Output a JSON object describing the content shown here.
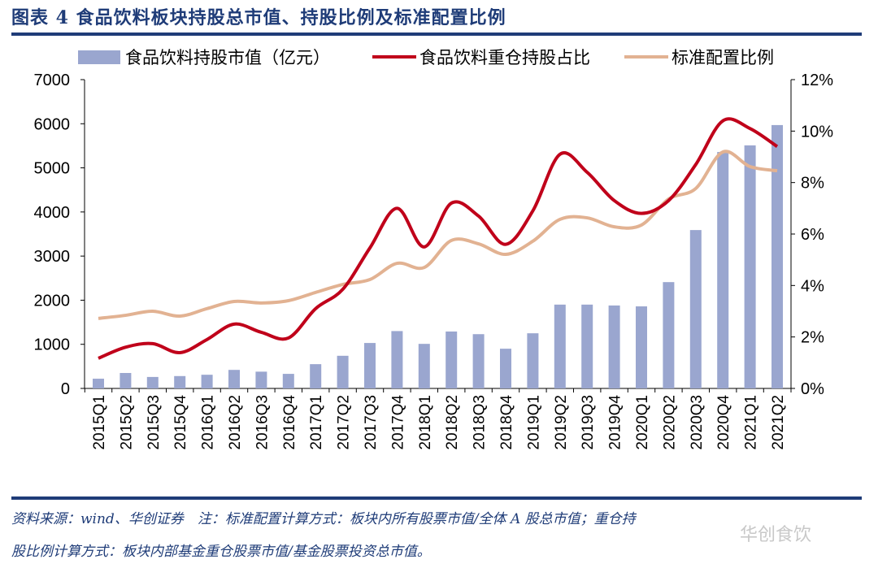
{
  "title": "图表 4   食品饮料板块持股总市值、持股比例及标准配置比例",
  "footer": {
    "line1": "资料来源：wind、华创证券　注：标准配置计算方式：板块内所有股票市值/全体 A 股总市值；重仓持",
    "line2": "股比例计算方式：板块内部基金重仓股票市值/基金股票投资总市值。",
    "watermark": "华创食饮"
  },
  "chart_data": {
    "type": "bar+line",
    "categories": [
      "2015Q1",
      "2015Q2",
      "2015Q3",
      "2015Q4",
      "2016Q1",
      "2016Q2",
      "2016Q3",
      "2016Q4",
      "2017Q1",
      "2017Q2",
      "2017Q3",
      "2017Q4",
      "2018Q1",
      "2018Q2",
      "2018Q3",
      "2018Q4",
      "2019Q1",
      "2019Q2",
      "2019Q3",
      "2019Q4",
      "2020Q1",
      "2020Q2",
      "2020Q3",
      "2020Q4",
      "2021Q1",
      "2021Q2"
    ],
    "y_left": {
      "range": [
        0,
        7000
      ],
      "ticks": [
        "0",
        "1000",
        "2000",
        "3000",
        "4000",
        "5000",
        "6000",
        "7000"
      ]
    },
    "y_right": {
      "range": [
        0,
        12
      ],
      "ticks": [
        "0%",
        "2%",
        "4%",
        "6%",
        "8%",
        "10%",
        "12%"
      ]
    },
    "legend_position": "top",
    "grid": false,
    "series": [
      {
        "name": "食品饮料持股市值（亿元）",
        "type": "bar",
        "axis": "left",
        "color": "#9aa6cf",
        "values": [
          220,
          350,
          260,
          280,
          310,
          420,
          380,
          330,
          550,
          740,
          1030,
          1300,
          1010,
          1290,
          1230,
          900,
          1250,
          1900,
          1900,
          1880,
          1860,
          2410,
          3590,
          5360,
          5510,
          5970
        ]
      },
      {
        "name": "食品饮料重仓持股占比",
        "type": "line",
        "axis": "right",
        "unit": "%",
        "color": "#c0001a",
        "values": [
          1.17,
          1.6,
          1.74,
          1.39,
          1.9,
          2.5,
          2.18,
          1.96,
          3.1,
          3.85,
          5.46,
          7.0,
          5.5,
          7.2,
          6.7,
          5.6,
          6.9,
          9.1,
          8.4,
          7.3,
          6.8,
          7.3,
          8.7,
          10.4,
          10.1,
          9.4
        ]
      },
      {
        "name": "标准配置比例",
        "type": "line",
        "axis": "right",
        "unit": "%",
        "color": "#e2b292",
        "values": [
          2.72,
          2.84,
          3.0,
          2.81,
          3.1,
          3.38,
          3.32,
          3.41,
          3.73,
          4.04,
          4.23,
          4.86,
          4.7,
          5.75,
          5.62,
          5.21,
          5.72,
          6.57,
          6.63,
          6.28,
          6.35,
          7.36,
          7.77,
          9.19,
          8.62,
          8.46
        ]
      }
    ]
  }
}
